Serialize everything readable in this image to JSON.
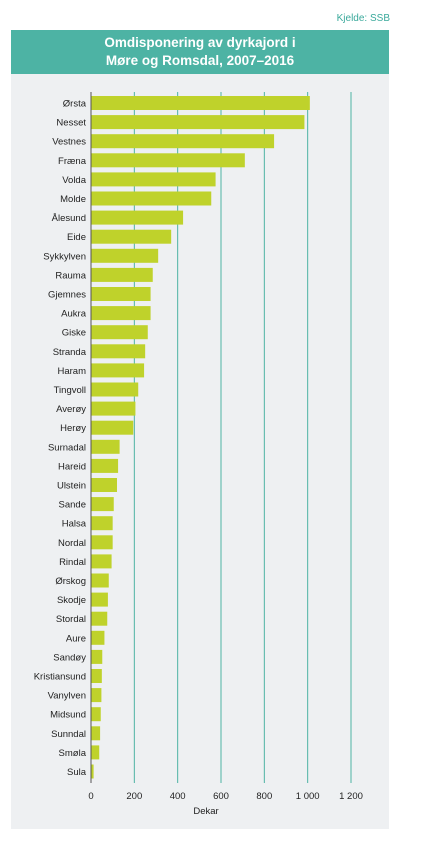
{
  "source": "Kjelde: SSB",
  "chart_data": {
    "type": "bar",
    "orientation": "horizontal",
    "title_lines": [
      "Omdisponering av dyrkajord i",
      "Møre og Romsdal, 2007–2016"
    ],
    "xlabel": "Dekar",
    "ylabel": "",
    "xlim": [
      0,
      1200
    ],
    "xticks": [
      0,
      200,
      400,
      600,
      800,
      1000,
      1200
    ],
    "xtick_labels": [
      "0",
      "200",
      "400",
      "600",
      "800",
      "1 000",
      "1 200"
    ],
    "grid": "vertical",
    "bar_color": "#bfd22b",
    "grid_color": "#4db3a4",
    "categories": [
      "Ørsta",
      "Nesset",
      "Vestnes",
      "Fræna",
      "Volda",
      "Molde",
      "Ålesund",
      "Eide",
      "Sykkylven",
      "Rauma",
      "Gjemnes",
      "Aukra",
      "Giske",
      "Stranda",
      "Haram",
      "Tingvoll",
      "Averøy",
      "Herøy",
      "Surnadal",
      "Hareid",
      "Ulstein",
      "Sande",
      "Halsa",
      "Nordal",
      "Rindal",
      "Ørskog",
      "Skodje",
      "Stordal",
      "Aure",
      "Sandøy",
      "Kristiansund",
      "Vanylven",
      "Midsund",
      "Sunndal",
      "Smøla",
      "Sula"
    ],
    "values": [
      1010,
      985,
      845,
      710,
      575,
      555,
      425,
      370,
      310,
      285,
      275,
      275,
      262,
      250,
      245,
      218,
      205,
      195,
      132,
      125,
      120,
      105,
      100,
      100,
      95,
      82,
      78,
      75,
      62,
      52,
      50,
      48,
      45,
      42,
      38,
      12
    ]
  }
}
